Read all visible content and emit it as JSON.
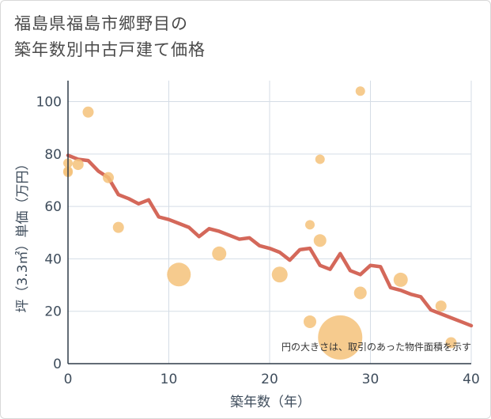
{
  "title_lines": [
    "福島県福島市郷野目の",
    "築年数別中古戸建て価格"
  ],
  "chart_data": {
    "type": "scatter",
    "title": "福島県福島市郷野目の築年数別中古戸建て価格",
    "xlabel": "築年数（年）",
    "ylabel": "坪（3.3㎡）単価（万円）",
    "xlim": [
      0,
      40
    ],
    "ylim": [
      0,
      108
    ],
    "x_ticks": [
      0,
      10,
      20,
      30,
      40
    ],
    "y_ticks": [
      0,
      20,
      40,
      60,
      80,
      100
    ],
    "grid": true,
    "annotation": "円の大きさは、取引のあった物件面積を示す",
    "colors": {
      "scatter": "#f5c27a",
      "trend": "#d4685a",
      "grid": "#d5dde6"
    },
    "scatter": [
      {
        "x": 0,
        "y": 73,
        "size": 6
      },
      {
        "x": 0,
        "y": 73.5,
        "size": 6
      },
      {
        "x": 0,
        "y": 76.5,
        "size": 6
      },
      {
        "x": 1,
        "y": 76,
        "size": 7
      },
      {
        "x": 2,
        "y": 96,
        "size": 7
      },
      {
        "x": 4,
        "y": 71,
        "size": 7
      },
      {
        "x": 5,
        "y": 52,
        "size": 7
      },
      {
        "x": 11,
        "y": 34,
        "size": 15
      },
      {
        "x": 15,
        "y": 42,
        "size": 9
      },
      {
        "x": 21,
        "y": 34,
        "size": 10
      },
      {
        "x": 24,
        "y": 16,
        "size": 8
      },
      {
        "x": 24,
        "y": 53,
        "size": 6
      },
      {
        "x": 25,
        "y": 47,
        "size": 8
      },
      {
        "x": 25,
        "y": 78,
        "size": 6
      },
      {
        "x": 27,
        "y": 10,
        "size": 28
      },
      {
        "x": 29,
        "y": 27,
        "size": 8
      },
      {
        "x": 29,
        "y": 104,
        "size": 6
      },
      {
        "x": 33,
        "y": 32,
        "size": 9
      },
      {
        "x": 37,
        "y": 22,
        "size": 7
      },
      {
        "x": 38,
        "y": 8,
        "size": 7
      }
    ],
    "trend": {
      "name": "trend",
      "x": [
        0,
        1,
        2,
        3,
        4,
        5,
        6,
        7,
        8,
        9,
        10,
        11,
        12,
        13,
        14,
        15,
        16,
        17,
        18,
        19,
        20,
        21,
        22,
        23,
        24,
        25,
        26,
        27,
        28,
        29,
        30,
        31,
        32,
        33,
        34,
        35,
        36,
        37,
        38,
        39,
        40
      ],
      "y": [
        79.5,
        78,
        77.5,
        73.5,
        71,
        64.5,
        63,
        61,
        62.5,
        56,
        55,
        53.5,
        52,
        48.5,
        51.5,
        50.5,
        49,
        47.5,
        48,
        45,
        44,
        42.5,
        39.5,
        43.5,
        44,
        37.5,
        36,
        42,
        35.5,
        34,
        37.5,
        37,
        29,
        28,
        26.5,
        25.5,
        20.5,
        19,
        17.5,
        16,
        14.5
      ]
    }
  }
}
